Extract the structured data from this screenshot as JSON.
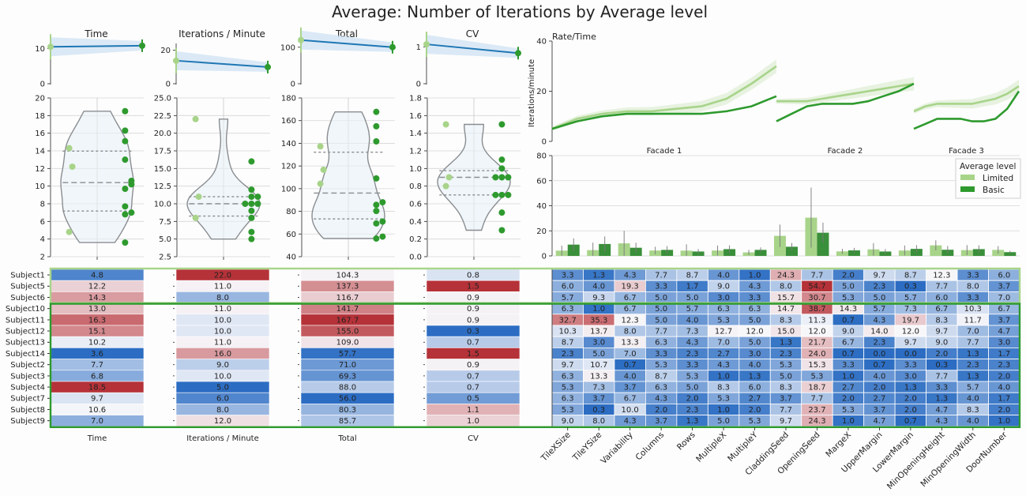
{
  "title": "Average: Number of Iterations by Average level",
  "colors": {
    "light": "#a8d48a",
    "dark": "#2e9a2e",
    "line": "#1f77b4",
    "band": "#cfe2f3",
    "neg": "#b2282e",
    "pos": "#2166c0"
  },
  "legend": {
    "title": "Average level",
    "items": [
      "Limited",
      "Basic"
    ]
  },
  "chart_data": [
    {
      "type": "line",
      "title": "Time",
      "ylim": [
        0,
        11
      ],
      "yticks": [
        "0",
        "10"
      ],
      "x": [
        "Limited",
        "Basic"
      ],
      "values": [
        10.5,
        10.8
      ]
    },
    {
      "type": "line",
      "title": "Iterations / Minute",
      "ylim": [
        0,
        23
      ],
      "yticks": [
        "0",
        "20"
      ],
      "x": [
        "Limited",
        "Basic"
      ],
      "values": [
        13.7,
        9.9
      ]
    },
    {
      "type": "line",
      "title": "Total",
      "ylim": [
        0,
        106
      ],
      "yticks": [
        "0",
        "100"
      ],
      "x": [
        "Limited",
        "Basic"
      ],
      "values": [
        119.5,
        100.1
      ]
    },
    {
      "type": "line",
      "title": "CV",
      "ylim": [
        0,
        1.05
      ],
      "yticks": [
        "0",
        "1"
      ],
      "x": [
        "Limited",
        "Basic"
      ],
      "values": [
        1.07,
        0.83
      ]
    },
    {
      "type": "scatter",
      "subtype": "violin",
      "title": "Time",
      "ylim": [
        2,
        20
      ],
      "yticks": [
        "2",
        "4",
        "6",
        "8",
        "10",
        "12",
        "14",
        "16",
        "18",
        "20"
      ],
      "limited": [
        4.8,
        12.2,
        14.3
      ],
      "basic": [
        3.6,
        6.8,
        7.0,
        7.7,
        9.7,
        10.2,
        10.6,
        13.0,
        15.1,
        16.3,
        18.5
      ]
    },
    {
      "type": "scatter",
      "subtype": "violin",
      "title": "Iterations / Minute",
      "ylim": [
        2.5,
        25
      ],
      "yticks": [
        "2.5",
        "5.0",
        "7.5",
        "10.0",
        "12.5",
        "15.0",
        "17.5",
        "20.0",
        "22.5",
        "25.0"
      ],
      "limited": [
        8.0,
        11.0,
        22.0
      ],
      "basic": [
        5.0,
        6.0,
        8.0,
        9.0,
        10.0,
        10.0,
        10.0,
        11.0,
        11.0,
        12.0,
        16.0
      ]
    },
    {
      "type": "scatter",
      "subtype": "violin",
      "title": "Total",
      "ylim": [
        40,
        180
      ],
      "yticks": [
        "40",
        "60",
        "80",
        "100",
        "120",
        "140",
        "160",
        "180"
      ],
      "limited": [
        104.3,
        116.7,
        137.3
      ],
      "basic": [
        56.0,
        57.7,
        69.3,
        71.0,
        80.3,
        85.7,
        88.0,
        109.0,
        141.7,
        155.0,
        167.7
      ]
    },
    {
      "type": "scatter",
      "subtype": "violin",
      "title": "CV",
      "ylim": [
        0.0,
        1.8
      ],
      "yticks": [
        "0.0",
        "0.2",
        "0.4",
        "0.6",
        "0.8",
        "1.0",
        "1.2",
        "1.4",
        "1.6",
        "1.8"
      ],
      "limited": [
        0.8,
        0.9,
        1.5
      ],
      "basic": [
        0.3,
        0.5,
        0.7,
        0.7,
        0.7,
        0.9,
        0.9,
        0.9,
        1.0,
        1.1,
        1.5
      ]
    },
    {
      "type": "line",
      "title": "Rate/Time",
      "ylabel": "Iterations/minute",
      "ylim": [
        0,
        40
      ],
      "yticks": [
        "0",
        "20",
        "40"
      ],
      "facets": [
        "Facade 1",
        "Facade 2",
        "Facade 3"
      ],
      "series": [
        {
          "name": "Limited",
          "facets": [
            [
              5,
              9,
              11,
              12,
              12,
              13,
              14,
              17,
              23,
              30
            ],
            [
              16,
              16,
              16,
              17,
              18,
              19,
              20,
              21,
              22,
              23
            ],
            [
              12,
              14,
              15,
              15,
              15,
              15,
              16,
              17,
              19,
              22
            ]
          ]
        },
        {
          "name": "Basic",
          "facets": [
            [
              5,
              8,
              10,
              11,
              11,
              11,
              11,
              12,
              14,
              18
            ],
            [
              8,
              11,
              14,
              15,
              15,
              15,
              16,
              18,
              20,
              23
            ],
            [
              5,
              7,
              9,
              9,
              9,
              8,
              8,
              9,
              13,
              20
            ]
          ]
        }
      ]
    },
    {
      "type": "bar",
      "ylim": [
        0,
        80
      ],
      "yticks": [
        "0",
        "20",
        "40",
        "60",
        "80"
      ],
      "categories": [
        "TileXSize",
        "TileYSize",
        "Variability",
        "Columns",
        "Rows",
        "MultipleX",
        "MultipleY",
        "CladdingSeed",
        "OpeningSeed",
        "MargeX",
        "UpperMargin",
        "LowerMargin",
        "MinOpeningHeight",
        "MinOpeningWidth",
        "DoorNumber"
      ],
      "series": [
        {
          "name": "Limited",
          "values": [
            4.2,
            4.6,
            10.0,
            4.3,
            4.2,
            4.3,
            2.8,
            16.0,
            30.5,
            3.6,
            5.2,
            4.3,
            8.4,
            4.6,
            4.8
          ],
          "err": [
            4,
            6,
            10,
            3,
            5,
            4,
            2,
            9,
            24,
            2,
            5,
            4,
            4,
            4,
            3
          ]
        },
        {
          "name": "Basic",
          "values": [
            9.0,
            9.5,
            6.5,
            4.8,
            3.5,
            5.4,
            4.8,
            7.3,
            18.5,
            4.4,
            3.5,
            5.6,
            4.9,
            5.4,
            3.0
          ],
          "err": [
            5,
            6,
            4,
            3,
            2,
            3,
            2,
            3,
            8,
            2,
            2,
            3,
            3,
            3,
            1
          ]
        }
      ]
    },
    {
      "type": "heatmap",
      "rows": [
        "Subject1",
        "Subject5",
        "Subject6",
        "Subject10",
        "Subject11",
        "Subject12",
        "Subject13",
        "Subject14",
        "Subject2",
        "Subject3",
        "Subject4",
        "Subject7",
        "Subject8",
        "Subject9"
      ],
      "groups": [
        {
          "name": "Limited",
          "rows": 3
        },
        {
          "name": "Basic",
          "rows": 11
        }
      ],
      "summary_cols": [
        "Time",
        "Iterations / Minute",
        "Total",
        "CV"
      ],
      "summary": [
        [
          "4.8",
          "22.0",
          "104.3",
          "0.8"
        ],
        [
          "12.2",
          "11.0",
          "137.3",
          "1.5"
        ],
        [
          "14.3",
          "8.0",
          "116.7",
          "0.9"
        ],
        [
          "13.0",
          "11.0",
          "141.7",
          "0.9"
        ],
        [
          "16.3",
          "10.0",
          "167.7",
          "0.9"
        ],
        [
          "15.1",
          "10.0",
          "155.0",
          "0.3"
        ],
        [
          "10.2",
          "11.0",
          "109.0",
          "0.7"
        ],
        [
          "3.6",
          "16.0",
          "57.7",
          "1.5"
        ],
        [
          "7.7",
          "9.0",
          "71.0",
          "0.9"
        ],
        [
          "6.8",
          "10.0",
          "69.3",
          "0.7"
        ],
        [
          "18.5",
          "5.0",
          "88.0",
          "0.7"
        ],
        [
          "9.7",
          "6.0",
          "56.0",
          "0.5"
        ],
        [
          "10.6",
          "8.0",
          "80.3",
          "1.1"
        ],
        [
          "7.0",
          "12.0",
          "85.7",
          "1.0"
        ]
      ],
      "param_cols": [
        "TileXSize",
        "TileYSize",
        "Variability",
        "Columns",
        "Rows",
        "MultipleX",
        "MultipleY",
        "CladdingSeed",
        "OpeningSeed",
        "MargeX",
        "UpperMargin",
        "LowerMargin",
        "MinOpeningHeight",
        "MinOpeningWidth",
        "DoorNumber"
      ],
      "params": [
        [
          "3.3",
          "1.3",
          "4.3",
          "7.7",
          "8.7",
          "4.0",
          "1.0",
          "24.3",
          "7.7",
          "2.0",
          "9.7",
          "8.7",
          "12.3",
          "3.3",
          "6.0"
        ],
        [
          "6.0",
          "4.0",
          "19.3",
          "3.3",
          "1.7",
          "9.0",
          "4.3",
          "8.0",
          "54.7",
          "5.0",
          "2.3",
          "0.3",
          "7.7",
          "8.0",
          "3.7"
        ],
        [
          "5.7",
          "9.3",
          "6.7",
          "5.0",
          "5.0",
          "3.0",
          "3.3",
          "15.7",
          "30.7",
          "5.3",
          "5.0",
          "5.7",
          "6.0",
          "3.3",
          "7.0"
        ],
        [
          "6.3",
          "1.0",
          "6.7",
          "5.0",
          "5.7",
          "6.3",
          "6.3",
          "14.7",
          "38.7",
          "14.3",
          "5.7",
          "7.3",
          "6.7",
          "10.3",
          "6.7"
        ],
        [
          "32.7",
          "35.3",
          "12.3",
          "5.0",
          "4.0",
          "5.3",
          "5.0",
          "8.3",
          "11.3",
          "0.7",
          "4.3",
          "19.7",
          "8.3",
          "11.7",
          "3.7"
        ],
        [
          "10.3",
          "13.7",
          "8.0",
          "7.7",
          "7.3",
          "12.7",
          "12.0",
          "15.0",
          "12.0",
          "9.0",
          "14.0",
          "12.0",
          "9.7",
          "7.0",
          "4.7"
        ],
        [
          "8.7",
          "3.0",
          "13.3",
          "6.3",
          "4.3",
          "7.0",
          "5.0",
          "1.3",
          "21.7",
          "6.7",
          "2.3",
          "9.7",
          "9.0",
          "7.7",
          "3.0"
        ],
        [
          "2.3",
          "5.0",
          "7.0",
          "3.3",
          "2.3",
          "2.7",
          "3.0",
          "2.3",
          "24.0",
          "0.7",
          "0.0",
          "0.0",
          "2.0",
          "1.3",
          "1.7"
        ],
        [
          "9.7",
          "10.7",
          "0.7",
          "5.3",
          "3.3",
          "4.3",
          "4.0",
          "5.3",
          "15.3",
          "3.3",
          "0.7",
          "3.3",
          "0.3",
          "2.3",
          "2.3"
        ],
        [
          "6.3",
          "13.3",
          "4.0",
          "8.7",
          "5.3",
          "1.0",
          "1.3",
          "5.0",
          "5.3",
          "1.0",
          "4.0",
          "3.0",
          "7.7",
          "1.3",
          "2.0"
        ],
        [
          "5.3",
          "7.3",
          "3.7",
          "6.3",
          "5.0",
          "8.3",
          "6.0",
          "8.3",
          "18.7",
          "2.7",
          "2.0",
          "1.3",
          "3.3",
          "5.7",
          "4.0"
        ],
        [
          "6.3",
          "3.7",
          "6.7",
          "4.3",
          "2.0",
          "5.3",
          "2.7",
          "3.7",
          "7.7",
          "2.0",
          "2.7",
          "2.0",
          "1.3",
          "4.0",
          "1.7"
        ],
        [
          "5.3",
          "0.3",
          "10.0",
          "2.0",
          "2.3",
          "1.0",
          "2.0",
          "7.7",
          "23.7",
          "5.3",
          "3.7",
          "2.0",
          "4.7",
          "8.3",
          "2.0"
        ],
        [
          "9.0",
          "8.0",
          "4.3",
          "3.7",
          "1.3",
          "5.0",
          "5.3",
          "9.7",
          "24.3",
          "1.0",
          "4.7",
          "0.7",
          "4.3",
          "4.0",
          "1.0"
        ]
      ]
    }
  ]
}
